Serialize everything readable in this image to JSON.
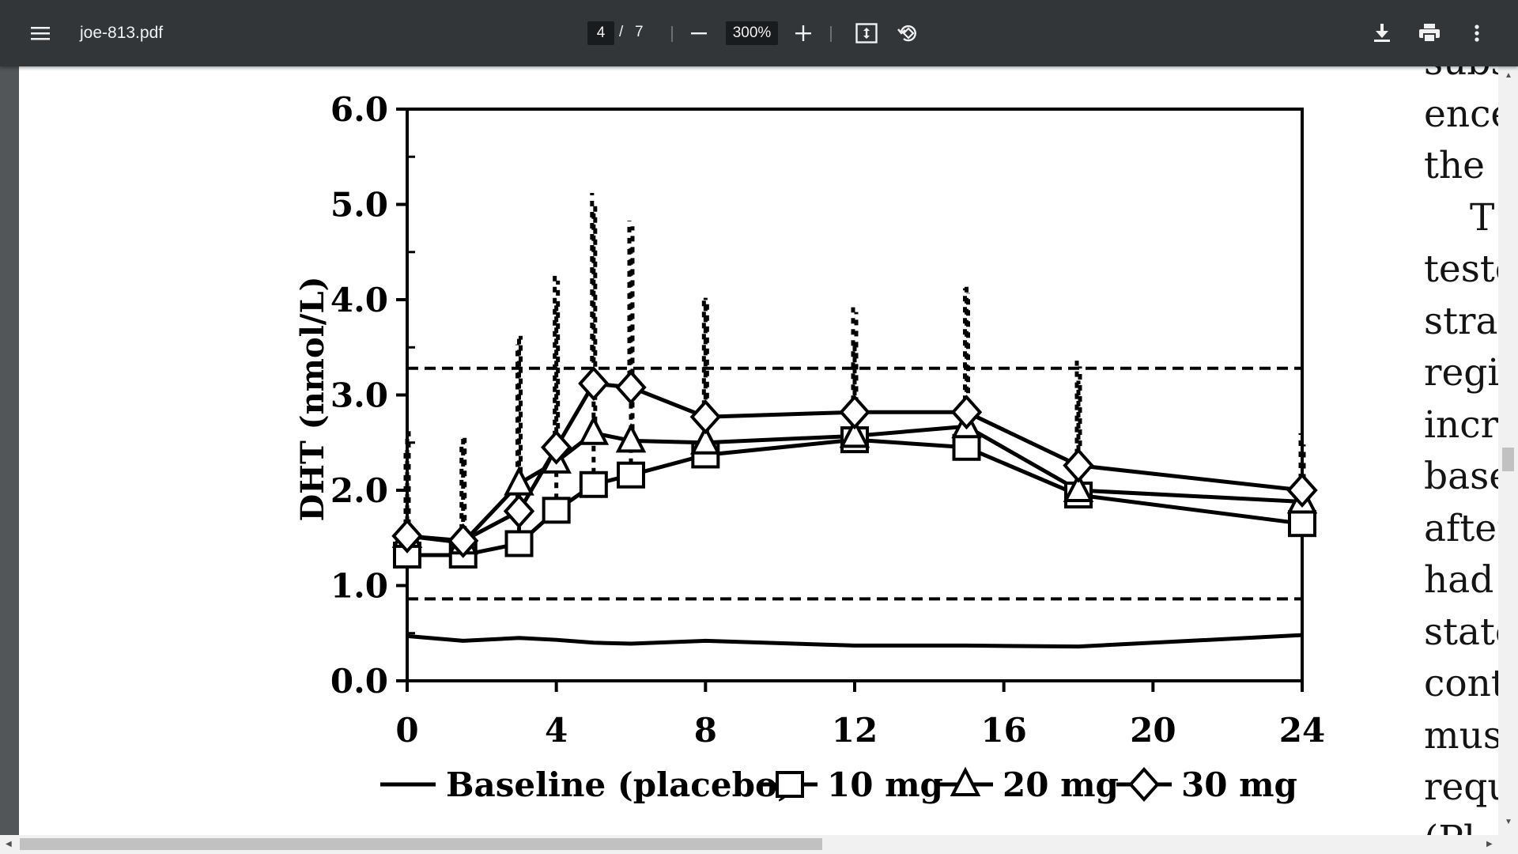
{
  "toolbar": {
    "filename": "joe-813.pdf",
    "page_current": "4",
    "page_separator": "/",
    "page_total": "7",
    "zoom": "300%",
    "icons": [
      "menu-icon",
      "zoom-out-icon",
      "zoom-in-icon",
      "fit-page-icon",
      "rotate-icon",
      "download-icon",
      "print-icon",
      "more-options-icon"
    ]
  },
  "side_text": [
    "subs",
    "ence",
    "the",
    "T",
    "testo",
    "strat",
    "regi",
    "incr",
    "base",
    "after",
    "had",
    "state",
    "cont",
    "mus",
    "requ",
    "(Pl"
  ],
  "chart_data": {
    "type": "line",
    "title": "",
    "xlabel": "",
    "ylabel": "DHT (nmol/L)",
    "xlim": [
      0,
      24
    ],
    "ylim": [
      0,
      6
    ],
    "xticks": [
      0,
      4,
      8,
      12,
      16,
      20,
      24
    ],
    "xtick_labels": [
      "0",
      "4",
      "8",
      "12",
      "16",
      "20",
      "24"
    ],
    "yticks": [
      0,
      1,
      2,
      3,
      4,
      5,
      6
    ],
    "ytick_labels": [
      "0.0",
      "1.0",
      "2.0",
      "3.0",
      "4.0",
      "5.0",
      "6.0"
    ],
    "reference_lines": [
      3.28,
      0.86
    ],
    "legend_position": "bottom",
    "series": [
      {
        "name": "Baseline (placebo)",
        "marker": "none",
        "x": [
          0,
          1.5,
          3,
          4,
          5,
          6,
          8,
          12,
          15,
          18,
          24
        ],
        "y": [
          0.47,
          0.42,
          0.45,
          0.43,
          0.4,
          0.39,
          0.42,
          0.37,
          0.37,
          0.36,
          0.48
        ]
      },
      {
        "name": "10 mg",
        "marker": "square",
        "x": [
          0,
          1.5,
          3,
          4,
          5,
          6,
          8,
          12,
          15,
          18,
          24
        ],
        "y": [
          1.32,
          1.32,
          1.44,
          1.79,
          2.06,
          2.16,
          2.37,
          2.53,
          2.45,
          1.95,
          1.65
        ],
        "err": [
          1.25,
          1.22,
          2.15,
          2.2,
          2.85,
          2.4,
          1.65,
          1.0,
          1.7,
          1.2,
          0.6
        ]
      },
      {
        "name": "20 mg",
        "marker": "triangle",
        "x": [
          0,
          1.5,
          3,
          4,
          5,
          6,
          8,
          12,
          15,
          18,
          24
        ],
        "y": [
          1.52,
          1.45,
          2.07,
          2.3,
          2.6,
          2.52,
          2.5,
          2.57,
          2.67,
          2.0,
          1.88
        ],
        "err": [
          1.1,
          1.1,
          1.55,
          1.9,
          2.4,
          2.25,
          1.5,
          1.3,
          1.4,
          1.3,
          0.6
        ]
      },
      {
        "name": "30 mg",
        "marker": "diamond",
        "x": [
          0,
          1.5,
          3,
          4,
          5,
          6,
          8,
          12,
          15,
          18,
          24
        ],
        "y": [
          1.52,
          1.47,
          1.78,
          2.45,
          3.12,
          3.08,
          2.77,
          2.82,
          2.82,
          2.26,
          2.0
        ],
        "err": [
          0.9,
          1.0,
          1.75,
          1.8,
          2.0,
          1.75,
          1.25,
          1.1,
          1.3,
          1.1,
          0.6
        ]
      }
    ]
  }
}
